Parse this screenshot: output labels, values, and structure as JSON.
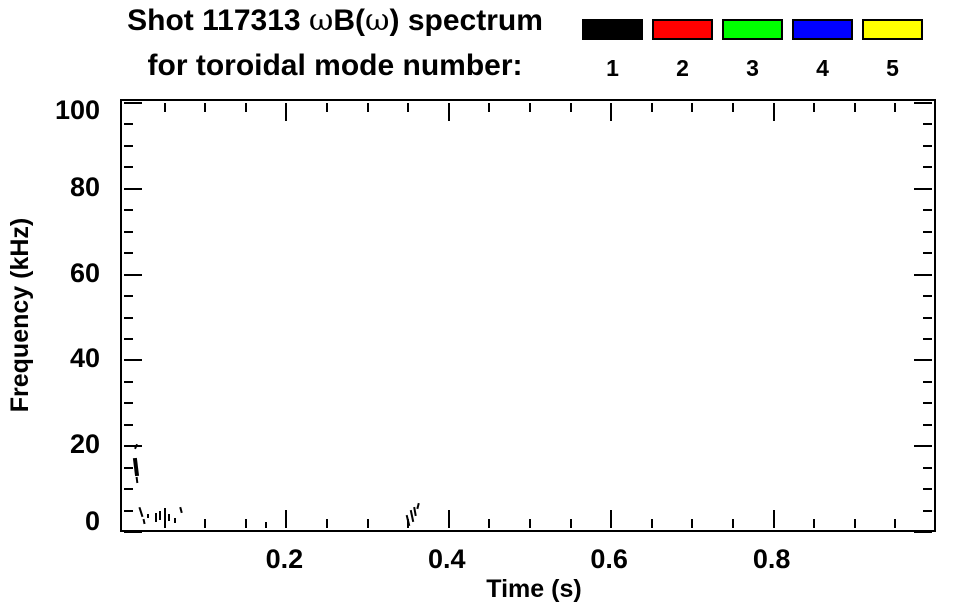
{
  "title": {
    "line1_pre": "Shot 117313 ",
    "line1_omega1": "ω",
    "line1_mid": "B(",
    "line1_omega2": "ω",
    "line1_post": ") spectrum",
    "line2": "for toroidal mode number:"
  },
  "legend": {
    "modes": [
      {
        "label": "1",
        "color": "#000000"
      },
      {
        "label": "2",
        "color": "#ff0000"
      },
      {
        "label": "3",
        "color": "#00ff00"
      },
      {
        "label": "4",
        "color": "#0000ff"
      },
      {
        "label": "5",
        "color": "#ffff00"
      }
    ]
  },
  "chart_data": {
    "type": "scatter",
    "title": "Shot 117313 ωB(ω) spectrum for toroidal mode number: 1 2 3 4 5",
    "xlabel": "Time (s)",
    "ylabel": "Frequency (kHz)",
    "xlim": [
      0,
      1.0
    ],
    "ylim": [
      0,
      100
    ],
    "grid": false,
    "legend_position": "top-right",
    "x_major_ticks": [
      {
        "v": 0.2,
        "label": "0.2"
      },
      {
        "v": 0.4,
        "label": "0.4"
      },
      {
        "v": 0.6,
        "label": "0.6"
      },
      {
        "v": 0.8,
        "label": "0.8"
      }
    ],
    "x_minor_step": 0.05,
    "y_major_ticks": [
      {
        "v": 0,
        "label": "0"
      },
      {
        "v": 20,
        "label": "20"
      },
      {
        "v": 40,
        "label": "40"
      },
      {
        "v": 60,
        "label": "60"
      },
      {
        "v": 80,
        "label": "80"
      },
      {
        "v": 100,
        "label": "100"
      }
    ],
    "y_minor_step": 5,
    "series": [
      {
        "name": "mode 1",
        "color": "#000000",
        "marks": [
          {
            "t": 0.0148,
            "f1": 19.2,
            "f2": 20.4,
            "w": 2,
            "rot": 25
          },
          {
            "t": 0.015,
            "f1": 13.0,
            "f2": 17.3,
            "w": 4,
            "rot": -7
          },
          {
            "t": 0.0157,
            "f1": 11.4,
            "f2": 12.9,
            "w": 2,
            "rot": -7
          },
          {
            "t": 0.0215,
            "f1": 3.4,
            "f2": 5.8,
            "w": 2,
            "rot": -18
          },
          {
            "t": 0.025,
            "f1": 2.0,
            "f2": 3.1,
            "w": 2,
            "rot": -12
          },
          {
            "t": 0.03,
            "f1": 3.2,
            "f2": 4.2,
            "w": 2,
            "rot": 0
          },
          {
            "t": 0.039,
            "f1": 2.4,
            "f2": 4.4,
            "w": 2,
            "rot": 0
          },
          {
            "t": 0.0445,
            "f1": 2.7,
            "f2": 5.0,
            "w": 2,
            "rot": 0
          },
          {
            "t": 0.051,
            "f1": 2.8,
            "f2": 5.6,
            "w": 2,
            "rot": 0
          },
          {
            "t": 0.0555,
            "f1": 2.6,
            "f2": 4.3,
            "w": 2,
            "rot": 0
          },
          {
            "t": 0.063,
            "f1": 2.2,
            "f2": 3.2,
            "w": 2,
            "rot": 0
          },
          {
            "t": 0.07,
            "f1": 4.4,
            "f2": 5.8,
            "w": 2,
            "rot": -15
          },
          {
            "t": 0.175,
            "f1": 0.9,
            "f2": 2.4,
            "w": 2,
            "rot": 0
          },
          {
            "t": 0.3495,
            "f1": 1.4,
            "f2": 4.0,
            "w": 2,
            "rot": -14
          },
          {
            "t": 0.3545,
            "f1": 2.4,
            "f2": 5.2,
            "w": 2,
            "rot": -12
          },
          {
            "t": 0.3585,
            "f1": 3.6,
            "f2": 5.8,
            "w": 2,
            "rot": -10
          },
          {
            "t": 0.3625,
            "f1": 5.2,
            "f2": 6.7,
            "w": 2,
            "rot": 14
          }
        ]
      },
      {
        "name": "mode 2",
        "color": "#ff0000",
        "marks": []
      },
      {
        "name": "mode 3",
        "color": "#00ff00",
        "marks": []
      },
      {
        "name": "mode 4",
        "color": "#0000ff",
        "marks": []
      },
      {
        "name": "mode 5",
        "color": "#ffff00",
        "marks": []
      }
    ]
  }
}
